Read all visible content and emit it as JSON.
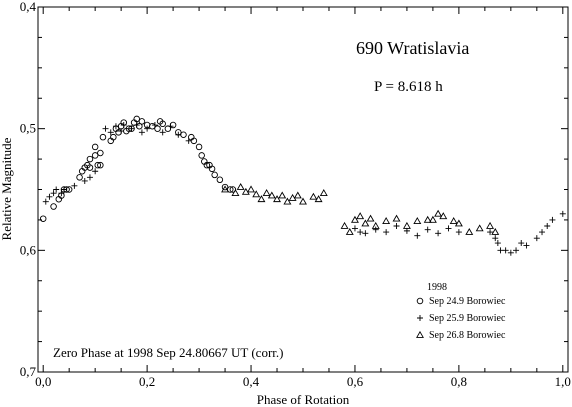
{
  "chart_data": {
    "type": "scatter",
    "title": "690 Wratislavia",
    "subtitle": "P = 8.618 h",
    "xlabel": "Phase of Rotation",
    "ylabel": "Relative Magnitude",
    "xlim": [
      -0.01,
      1.01
    ],
    "ylim": [
      0.7,
      0.4
    ],
    "y_inverted": true,
    "x_ticks": [
      "0,0",
      "0,2",
      "0,4",
      "0,6",
      "0,8",
      "1,0"
    ],
    "x_tick_values": [
      0.0,
      0.2,
      0.4,
      0.6,
      0.8,
      1.0
    ],
    "y_ticks": [
      "0,4",
      "0,5",
      "0,6",
      "0,7"
    ],
    "y_tick_values": [
      0.4,
      0.5,
      0.6,
      0.7
    ],
    "grid": false,
    "legend_title": "1998",
    "legend_position": "bottom-right",
    "annotation": "Zero Phase at 1998 Sep 24.80667 UT (corr.)",
    "series": [
      {
        "name": "Sep 24.9 Borowiec",
        "marker": "circle",
        "points": [
          [
            0.0,
            0.574
          ],
          [
            0.02,
            0.564
          ],
          [
            0.03,
            0.558
          ],
          [
            0.035,
            0.555
          ],
          [
            0.04,
            0.55
          ],
          [
            0.045,
            0.55
          ],
          [
            0.05,
            0.55
          ],
          [
            0.07,
            0.54
          ],
          [
            0.075,
            0.535
          ],
          [
            0.08,
            0.532
          ],
          [
            0.085,
            0.53
          ],
          [
            0.09,
            0.525
          ],
          [
            0.09,
            0.532
          ],
          [
            0.1,
            0.515
          ],
          [
            0.1,
            0.522
          ],
          [
            0.105,
            0.53
          ],
          [
            0.11,
            0.53
          ],
          [
            0.11,
            0.52
          ],
          [
            0.115,
            0.507
          ],
          [
            0.13,
            0.51
          ],
          [
            0.135,
            0.507
          ],
          [
            0.14,
            0.5
          ],
          [
            0.145,
            0.503
          ],
          [
            0.15,
            0.498
          ],
          [
            0.155,
            0.495
          ],
          [
            0.16,
            0.502
          ],
          [
            0.165,
            0.5
          ],
          [
            0.17,
            0.5
          ],
          [
            0.175,
            0.495
          ],
          [
            0.18,
            0.492
          ],
          [
            0.185,
            0.498
          ],
          [
            0.19,
            0.494
          ],
          [
            0.2,
            0.497
          ],
          [
            0.21,
            0.498
          ],
          [
            0.22,
            0.5
          ],
          [
            0.225,
            0.494
          ],
          [
            0.23,
            0.496
          ],
          [
            0.24,
            0.5
          ],
          [
            0.25,
            0.497
          ],
          [
            0.26,
            0.503
          ],
          [
            0.27,
            0.505
          ],
          [
            0.285,
            0.507
          ],
          [
            0.29,
            0.51
          ],
          [
            0.3,
            0.515
          ],
          [
            0.305,
            0.522
          ],
          [
            0.31,
            0.527
          ],
          [
            0.315,
            0.53
          ],
          [
            0.32,
            0.53
          ],
          [
            0.325,
            0.533
          ],
          [
            0.33,
            0.538
          ],
          [
            0.34,
            0.542
          ],
          [
            0.35,
            0.548
          ],
          [
            0.36,
            0.55
          ],
          [
            0.365,
            0.55
          ]
        ]
      },
      {
        "name": "Sep 25.9 Borowiec",
        "marker": "plus",
        "points": [
          [
            0.005,
            0.56
          ],
          [
            0.012,
            0.556
          ],
          [
            0.02,
            0.553
          ],
          [
            0.025,
            0.55
          ],
          [
            0.035,
            0.553
          ],
          [
            0.04,
            0.55
          ],
          [
            0.06,
            0.547
          ],
          [
            0.08,
            0.543
          ],
          [
            0.09,
            0.54
          ],
          [
            0.1,
            0.535
          ],
          [
            0.12,
            0.5
          ],
          [
            0.13,
            0.503
          ],
          [
            0.14,
            0.498
          ],
          [
            0.15,
            0.502
          ],
          [
            0.155,
            0.497
          ],
          [
            0.17,
            0.5
          ],
          [
            0.18,
            0.497
          ],
          [
            0.19,
            0.503
          ],
          [
            0.2,
            0.5
          ],
          [
            0.215,
            0.497
          ],
          [
            0.23,
            0.503
          ],
          [
            0.245,
            0.498
          ],
          [
            0.26,
            0.505
          ],
          [
            0.28,
            0.51
          ],
          [
            0.6,
            0.582
          ],
          [
            0.61,
            0.585
          ],
          [
            0.62,
            0.586
          ],
          [
            0.64,
            0.583
          ],
          [
            0.66,
            0.585
          ],
          [
            0.68,
            0.58
          ],
          [
            0.7,
            0.584
          ],
          [
            0.72,
            0.588
          ],
          [
            0.74,
            0.583
          ],
          [
            0.76,
            0.586
          ],
          [
            0.78,
            0.582
          ],
          [
            0.8,
            0.585
          ],
          [
            0.86,
            0.585
          ],
          [
            0.87,
            0.59
          ],
          [
            0.875,
            0.594
          ],
          [
            0.88,
            0.6
          ],
          [
            0.89,
            0.6
          ],
          [
            0.9,
            0.602
          ],
          [
            0.91,
            0.6
          ],
          [
            0.92,
            0.594
          ],
          [
            0.93,
            0.596
          ],
          [
            0.95,
            0.59
          ],
          [
            0.96,
            0.585
          ],
          [
            0.97,
            0.58
          ],
          [
            0.98,
            0.575
          ],
          [
            1.0,
            0.57
          ]
        ]
      },
      {
        "name": "Sep 26.8 Borowiec",
        "marker": "triangle",
        "points": [
          [
            0.35,
            0.55
          ],
          [
            0.37,
            0.553
          ],
          [
            0.38,
            0.548
          ],
          [
            0.39,
            0.552
          ],
          [
            0.4,
            0.55
          ],
          [
            0.41,
            0.554
          ],
          [
            0.42,
            0.558
          ],
          [
            0.43,
            0.553
          ],
          [
            0.44,
            0.555
          ],
          [
            0.45,
            0.558
          ],
          [
            0.46,
            0.555
          ],
          [
            0.47,
            0.56
          ],
          [
            0.48,
            0.557
          ],
          [
            0.49,
            0.555
          ],
          [
            0.5,
            0.56
          ],
          [
            0.52,
            0.556
          ],
          [
            0.53,
            0.558
          ],
          [
            0.54,
            0.553
          ],
          [
            0.58,
            0.58
          ],
          [
            0.59,
            0.585
          ],
          [
            0.6,
            0.575
          ],
          [
            0.61,
            0.572
          ],
          [
            0.62,
            0.578
          ],
          [
            0.63,
            0.574
          ],
          [
            0.64,
            0.58
          ],
          [
            0.66,
            0.576
          ],
          [
            0.68,
            0.574
          ],
          [
            0.7,
            0.58
          ],
          [
            0.72,
            0.576
          ],
          [
            0.74,
            0.575
          ],
          [
            0.75,
            0.575
          ],
          [
            0.76,
            0.57
          ],
          [
            0.77,
            0.572
          ],
          [
            0.79,
            0.576
          ],
          [
            0.8,
            0.578
          ],
          [
            0.82,
            0.585
          ],
          [
            0.84,
            0.582
          ],
          [
            0.86,
            0.58
          ],
          [
            0.87,
            0.585
          ]
        ]
      }
    ]
  }
}
